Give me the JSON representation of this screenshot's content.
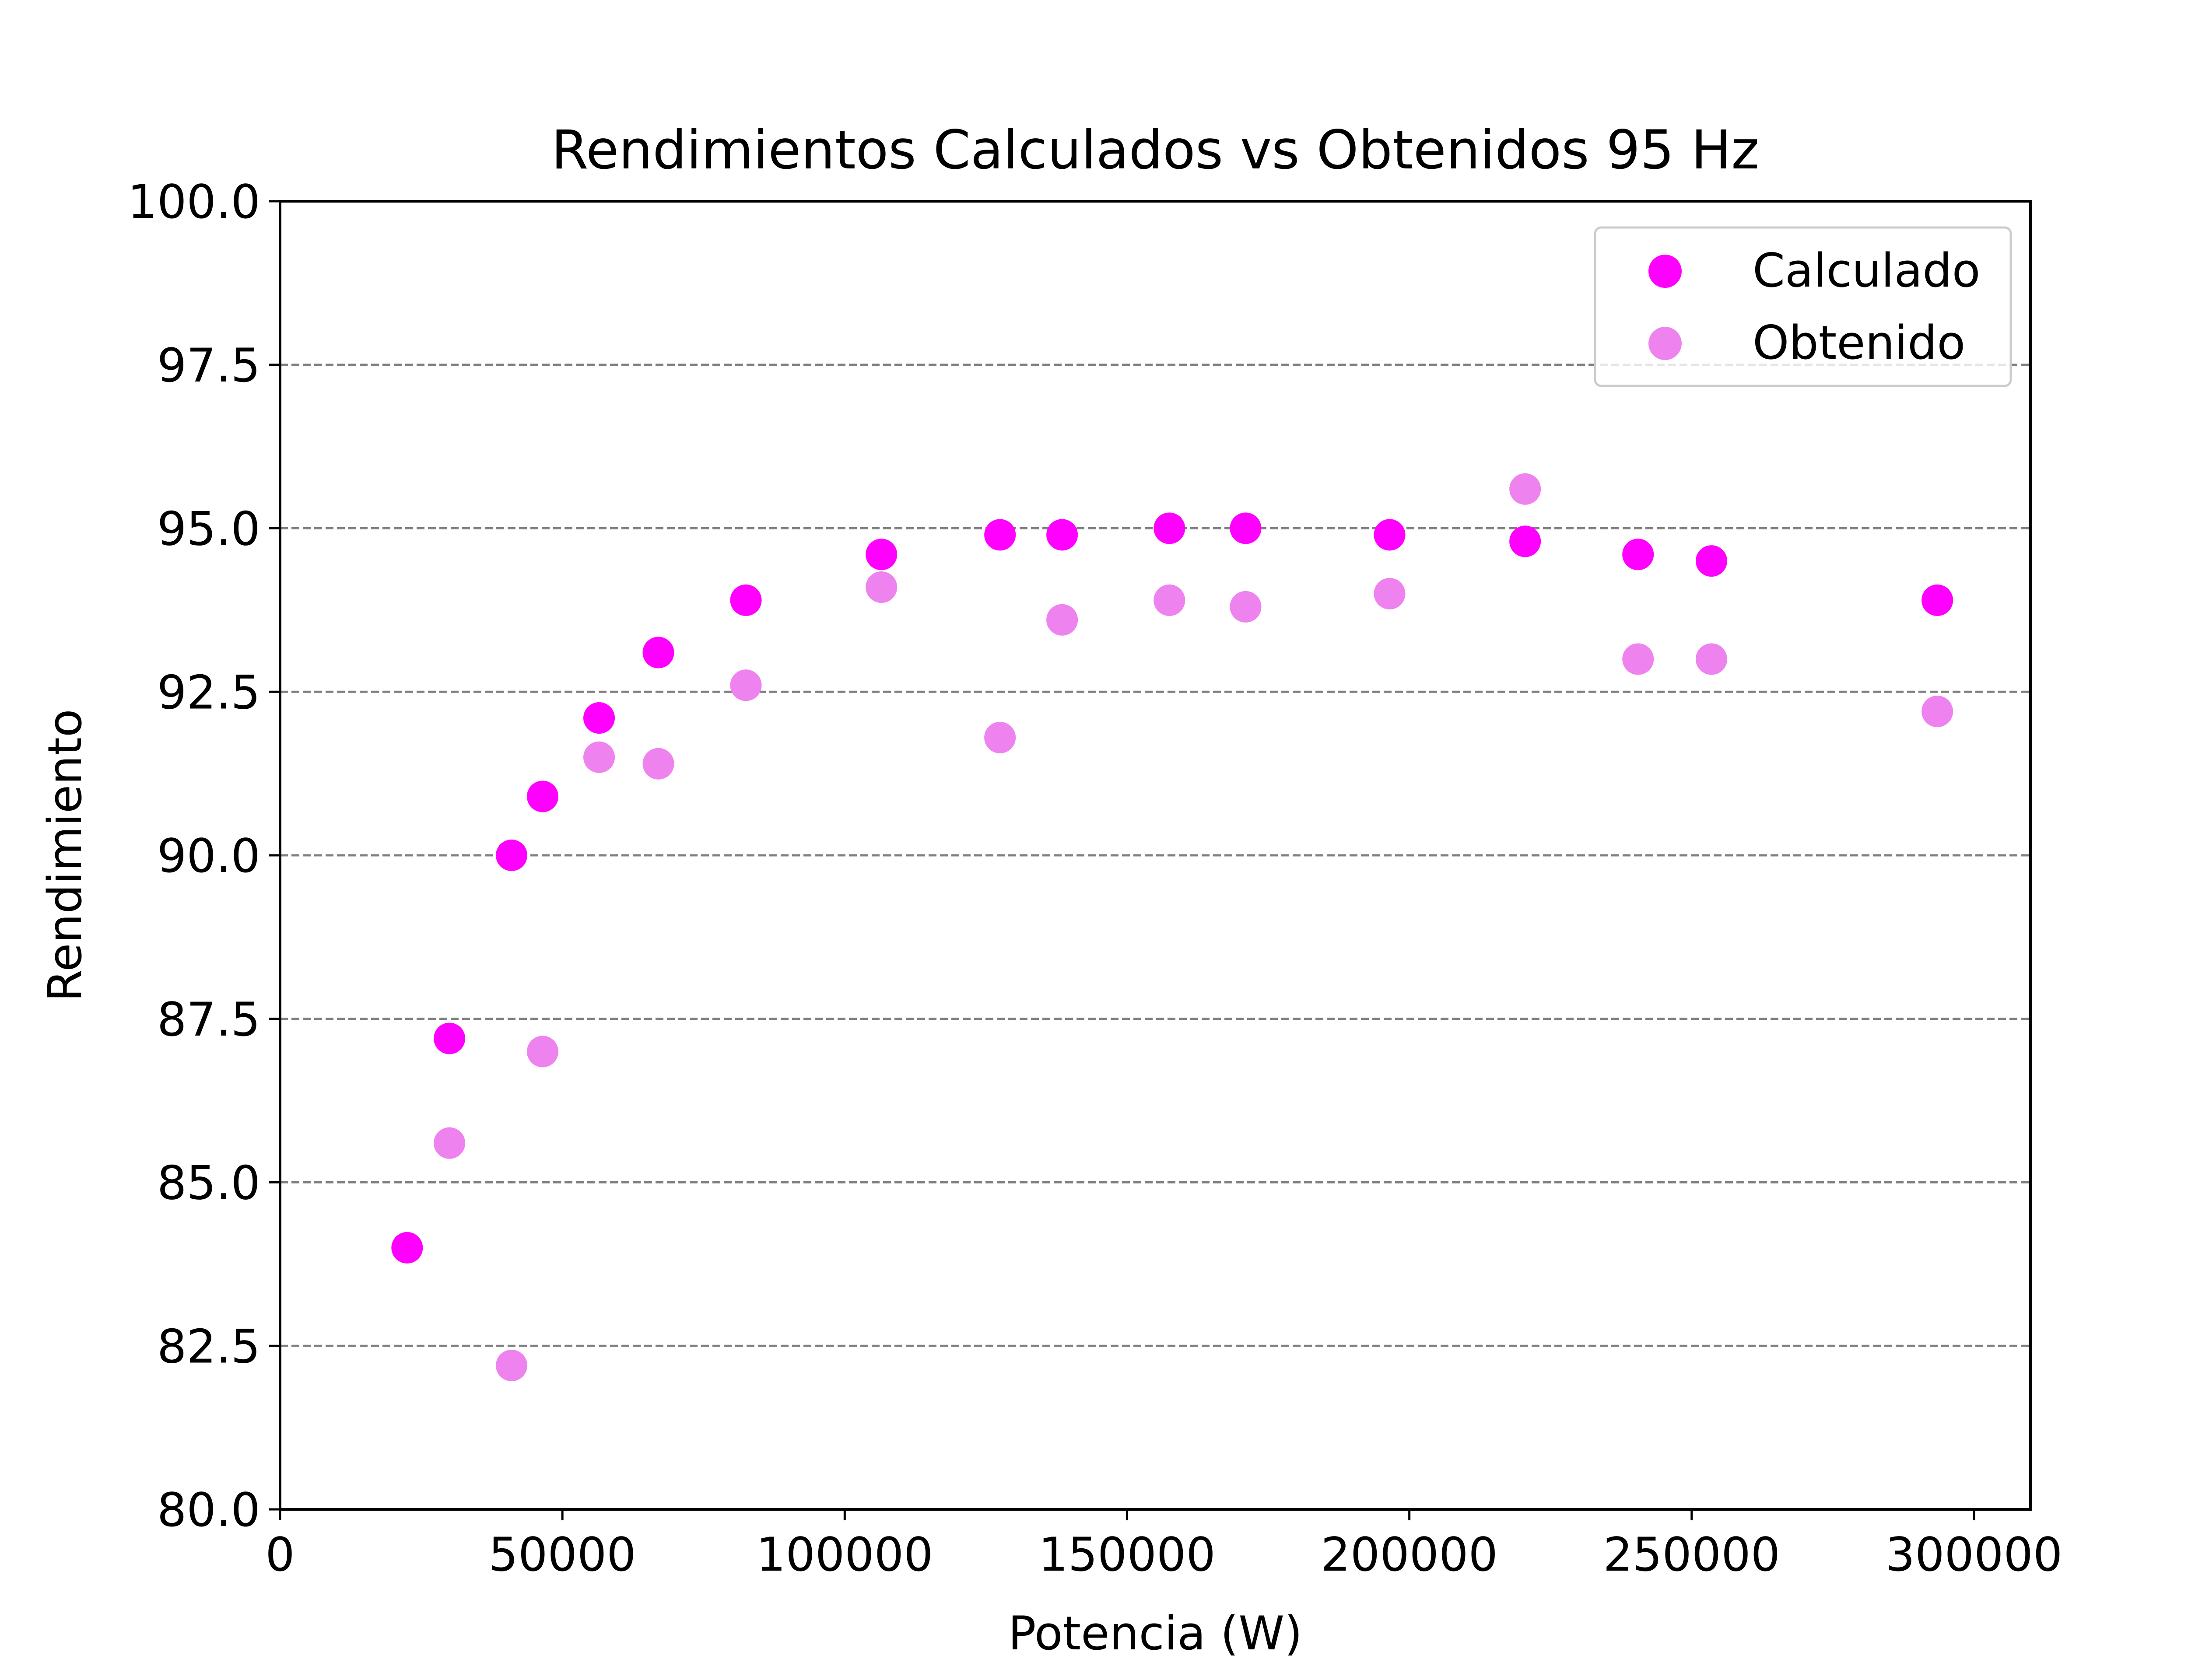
{
  "chart_data": {
    "type": "scatter",
    "title": "Rendimientos Calculados vs Obtenidos 95 Hz",
    "xlabel": "Potencia (W)",
    "ylabel": "Rendimiento",
    "xlim": [
      0,
      310000
    ],
    "ylim": [
      80,
      100
    ],
    "xticks": [
      0,
      50000,
      100000,
      150000,
      200000,
      250000,
      300000
    ],
    "xtick_labels": [
      "0",
      "50000",
      "100000",
      "150000",
      "200000",
      "250000",
      "300000"
    ],
    "yticks": [
      80,
      82.5,
      85,
      87.5,
      90,
      92.5,
      95,
      97.5,
      100
    ],
    "ytick_labels": [
      "80.0",
      "82.5",
      "85.0",
      "87.5",
      "90.0",
      "92.5",
      "95.0",
      "97.5",
      "100.0"
    ],
    "grid": "horizontal dashed",
    "legend_position": "top-right",
    "series": [
      {
        "name": "Calculado",
        "color": "#ff00ff",
        "x": [
          22500,
          30000,
          41000,
          46500,
          56500,
          67000,
          82500,
          106500,
          127500,
          138500,
          157500,
          171000,
          196500,
          220500,
          240500,
          253500,
          293500
        ],
        "y": [
          84.0,
          87.2,
          90.0,
          90.9,
          92.1,
          93.1,
          93.9,
          94.6,
          94.9,
          94.9,
          95.0,
          95.0,
          94.9,
          94.8,
          94.6,
          94.5,
          93.9
        ]
      },
      {
        "name": "Obtenido",
        "color": "#ee82ee",
        "x": [
          30000,
          41000,
          46500,
          56500,
          67000,
          82500,
          106500,
          127500,
          138500,
          157500,
          171000,
          196500,
          220500,
          240500,
          253500,
          293500
        ],
        "y": [
          85.6,
          82.2,
          87.0,
          91.5,
          91.4,
          92.6,
          94.1,
          91.8,
          93.6,
          93.9,
          93.8,
          94.0,
          95.6,
          93.0,
          93.0,
          92.2
        ]
      }
    ]
  }
}
